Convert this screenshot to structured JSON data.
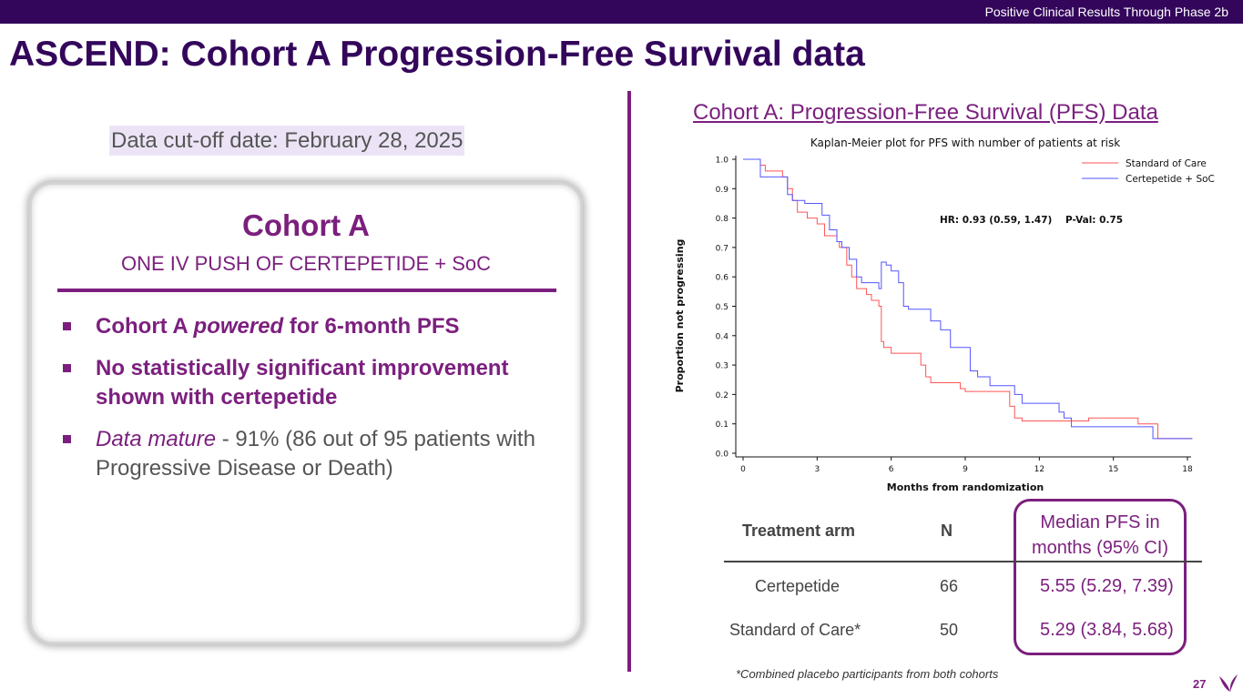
{
  "header": {
    "tagline": "Positive Clinical Results Through Phase 2b"
  },
  "title": "ASCEND: Cohort A Progression-Free Survival data",
  "cutoff": "Data cut-off date: February 28, 2025",
  "cohort": {
    "title": "Cohort A",
    "subtitle": "ONE IV PUSH OF CERTEPETIDE + SoC",
    "bullet1": {
      "a": "Cohort A ",
      "b": "powered",
      "c": " for 6-month PFS"
    },
    "bullet2": "No statistically significant improvement shown with certepetide",
    "bullet3": {
      "a": "Data mature",
      "b": " - 91% (86 out of 95 patients with Progressive Disease or Death)"
    }
  },
  "chart_heading": "Cohort A: Progression-Free Survival (PFS) Data",
  "chart_data": {
    "type": "line",
    "title": "Kaplan-Meier plot for PFS with number of patients at risk",
    "xlabel": "Months from randomization",
    "ylabel": "Proportion not progressing",
    "xlim": [
      0,
      18
    ],
    "ylim": [
      0,
      1
    ],
    "xticks": [
      0,
      3,
      6,
      9,
      12,
      15,
      18
    ],
    "yticks": [
      0.0,
      0.1,
      0.2,
      0.3,
      0.4,
      0.5,
      0.6,
      0.7,
      0.8,
      0.9,
      1.0
    ],
    "annotation": "HR: 0.93 (0.59, 1.47)    P-Val: 0.75",
    "legend_position": "top-right",
    "series": [
      {
        "name": "Standard of Care",
        "color": "#ff5555",
        "points": [
          [
            0,
            1.0
          ],
          [
            0.5,
            1.0
          ],
          [
            0.7,
            0.98
          ],
          [
            0.9,
            0.96
          ],
          [
            1.5,
            0.96
          ],
          [
            1.6,
            0.94
          ],
          [
            1.8,
            0.9
          ],
          [
            2.0,
            0.86
          ],
          [
            2.2,
            0.82
          ],
          [
            2.6,
            0.8
          ],
          [
            3.0,
            0.78
          ],
          [
            3.3,
            0.74
          ],
          [
            3.8,
            0.72
          ],
          [
            3.9,
            0.7
          ],
          [
            4.2,
            0.64
          ],
          [
            4.4,
            0.6
          ],
          [
            4.6,
            0.56
          ],
          [
            5.0,
            0.54
          ],
          [
            5.2,
            0.52
          ],
          [
            5.5,
            0.5
          ],
          [
            5.6,
            0.38
          ],
          [
            5.7,
            0.36
          ],
          [
            6.0,
            0.34
          ],
          [
            6.9,
            0.34
          ],
          [
            7.2,
            0.3
          ],
          [
            7.4,
            0.26
          ],
          [
            7.6,
            0.24
          ],
          [
            8.0,
            0.24
          ],
          [
            8.8,
            0.22
          ],
          [
            9.0,
            0.21
          ],
          [
            10.5,
            0.21
          ],
          [
            10.8,
            0.16
          ],
          [
            11.0,
            0.12
          ],
          [
            11.3,
            0.11
          ],
          [
            12.0,
            0.11
          ],
          [
            13.0,
            0.11
          ],
          [
            14.0,
            0.12
          ],
          [
            15.5,
            0.12
          ],
          [
            16.0,
            0.1
          ],
          [
            16.5,
            0.1
          ],
          [
            16.8,
            0.05
          ],
          [
            18.2,
            0.05
          ]
        ]
      },
      {
        "name": "Certepetide + SoC",
        "color": "#5555ff",
        "points": [
          [
            0,
            1.0
          ],
          [
            0.4,
            1.0
          ],
          [
            0.7,
            0.94
          ],
          [
            1.6,
            0.94
          ],
          [
            1.8,
            0.88
          ],
          [
            2.0,
            0.86
          ],
          [
            2.5,
            0.85
          ],
          [
            3.2,
            0.81
          ],
          [
            3.5,
            0.76
          ],
          [
            3.8,
            0.72
          ],
          [
            4.0,
            0.7
          ],
          [
            4.3,
            0.66
          ],
          [
            4.6,
            0.6
          ],
          [
            4.8,
            0.58
          ],
          [
            5.5,
            0.56
          ],
          [
            5.6,
            0.65
          ],
          [
            5.8,
            0.64
          ],
          [
            6.0,
            0.62
          ],
          [
            6.3,
            0.58
          ],
          [
            6.5,
            0.5
          ],
          [
            6.7,
            0.49
          ],
          [
            7.2,
            0.49
          ],
          [
            7.6,
            0.45
          ],
          [
            8.0,
            0.42
          ],
          [
            8.4,
            0.36
          ],
          [
            9.0,
            0.36
          ],
          [
            9.2,
            0.28
          ],
          [
            9.5,
            0.26
          ],
          [
            10.0,
            0.23
          ],
          [
            10.5,
            0.23
          ],
          [
            11.0,
            0.2
          ],
          [
            11.3,
            0.17
          ],
          [
            12.5,
            0.17
          ],
          [
            12.8,
            0.14
          ],
          [
            13.0,
            0.12
          ],
          [
            13.3,
            0.09
          ],
          [
            16.0,
            0.09
          ],
          [
            16.6,
            0.05
          ],
          [
            18.2,
            0.05
          ]
        ]
      }
    ]
  },
  "table": {
    "headers": {
      "arm": "Treatment arm",
      "n": "N",
      "median": "Median PFS in months (95% CI)"
    },
    "rows": [
      {
        "arm": "Certepetide",
        "n": "66",
        "median": "5.55 (5.29, 7.39)"
      },
      {
        "arm": "Standard of Care*",
        "n": "50",
        "median": "5.29 (3.84, 5.68)"
      }
    ]
  },
  "footnote": "*Combined placebo participants from both cohorts",
  "page_number": "27",
  "colors": {
    "brand": "#33065b",
    "accent": "#7b1f7e",
    "highlight": "#ece4f6"
  }
}
